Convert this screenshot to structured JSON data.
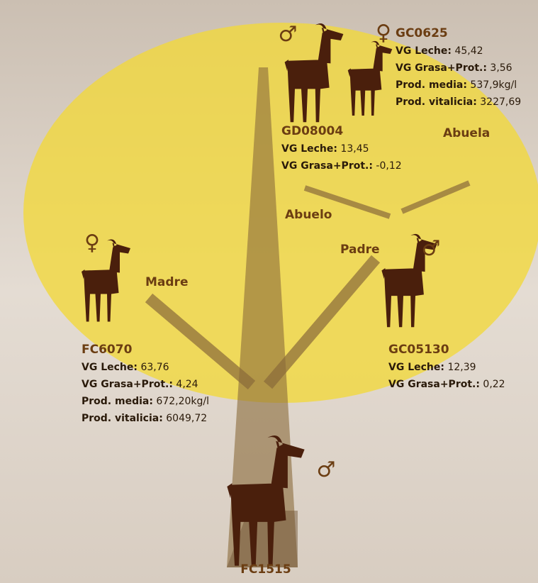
{
  "nodes": [
    {
      "id": "FC1515",
      "gender": "♂",
      "stats": []
    },
    {
      "id": "FC6070",
      "gender": "♀",
      "stats": [
        {
          "label": "VG Leche:",
          "value": "63,76"
        },
        {
          "label": "VG Grasa+Prot.:",
          "value": "4,24"
        },
        {
          "label": "Prod. media:",
          "value": "672,20kg/l"
        },
        {
          "label": "Prod. vitalicia:",
          "value": "6049,72"
        }
      ]
    },
    {
      "id": "GC05130",
      "gender": "♂",
      "stats": [
        {
          "label": "VG Leche:",
          "value": "12,39"
        },
        {
          "label": "VG Grasa+Prot.:",
          "value": "0,22"
        }
      ]
    },
    {
      "id": "GD08004",
      "gender": "♂",
      "stats": [
        {
          "label": "VG Leche:",
          "value": "13,45"
        },
        {
          "label": "VG Grasa+Prot.:",
          "value": "-0,12"
        }
      ]
    },
    {
      "id": "GC0625",
      "gender": "♀",
      "stats": [
        {
          "label": "VG Leche:",
          "value": "45,42"
        },
        {
          "label": "VG Grasa+Prot.:",
          "value": "3,56"
        },
        {
          "label": "Prod. media:",
          "value": "537,9kg/l"
        },
        {
          "label": "Prod. vitalicia:",
          "value": "3227,69"
        }
      ]
    }
  ],
  "relations": [
    "Madre",
    "Padre",
    "Abuelo",
    "Abuela"
  ]
}
